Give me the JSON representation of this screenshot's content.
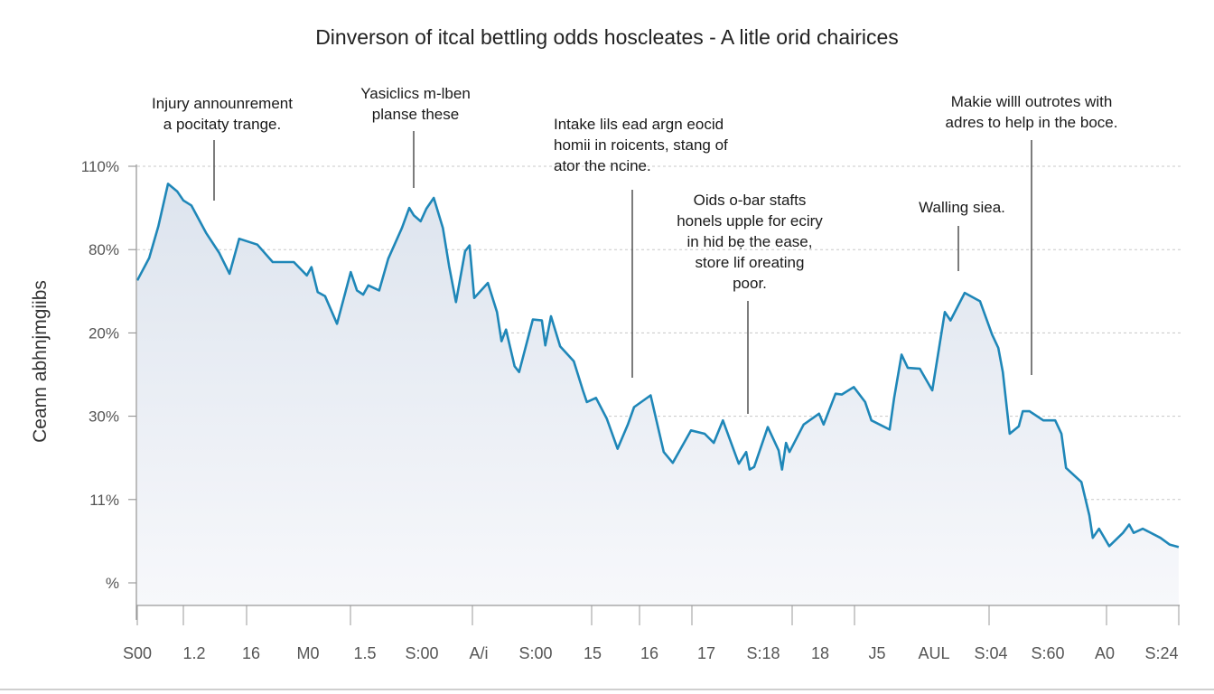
{
  "chart_data": {
    "type": "area",
    "title": "Dinverson of itcal bettling odds hoscleates - A litle orid chairices",
    "ylabel": "Ceann abhnjmgiibs",
    "xlabel": "",
    "x_tick_labels": [
      "S00",
      "1.2",
      "16",
      "M0",
      "1.5",
      "S:00",
      "A/i",
      "S:00",
      "15",
      "16",
      "17",
      "S:18",
      "18",
      "J5",
      "AUL",
      "S:04",
      "S:60",
      "A0",
      "S:24"
    ],
    "y_tick_labels": [
      "%",
      "11%",
      "30%",
      "20%",
      "80%",
      "110%"
    ],
    "ylim": [
      -0.27,
      5.0
    ],
    "xlim": [
      0,
      18.3
    ],
    "grid": "horizontal-dashed",
    "line_color": "#1f87b8",
    "fill_color": "#dde4ee",
    "points": [
      [
        0,
        3.63
      ],
      [
        0.21,
        3.9
      ],
      [
        0.37,
        4.28
      ],
      [
        0.54,
        4.79
      ],
      [
        0.7,
        4.7
      ],
      [
        0.81,
        4.59
      ],
      [
        0.95,
        4.53
      ],
      [
        1.21,
        4.2
      ],
      [
        1.44,
        3.96
      ],
      [
        1.62,
        3.71
      ],
      [
        1.79,
        4.13
      ],
      [
        2.11,
        4.06
      ],
      [
        2.38,
        3.85
      ],
      [
        2.75,
        3.85
      ],
      [
        2.98,
        3.69
      ],
      [
        3.06,
        3.79
      ],
      [
        3.17,
        3.49
      ],
      [
        3.3,
        3.44
      ],
      [
        3.51,
        3.11
      ],
      [
        3.75,
        3.73
      ],
      [
        3.86,
        3.51
      ],
      [
        3.97,
        3.46
      ],
      [
        4.06,
        3.57
      ],
      [
        4.25,
        3.51
      ],
      [
        4.41,
        3.89
      ],
      [
        4.65,
        4.26
      ],
      [
        4.78,
        4.5
      ],
      [
        4.86,
        4.41
      ],
      [
        4.98,
        4.34
      ],
      [
        5.08,
        4.49
      ],
      [
        5.21,
        4.62
      ],
      [
        5.37,
        4.26
      ],
      [
        5.48,
        3.8
      ],
      [
        5.6,
        3.37
      ],
      [
        5.76,
        3.98
      ],
      [
        5.84,
        4.05
      ],
      [
        5.92,
        3.42
      ],
      [
        6.16,
        3.6
      ],
      [
        6.32,
        3.25
      ],
      [
        6.4,
        2.9
      ],
      [
        6.48,
        3.04
      ],
      [
        6.63,
        2.6
      ],
      [
        6.71,
        2.53
      ],
      [
        6.95,
        3.16
      ],
      [
        7.11,
        3.15
      ],
      [
        7.17,
        2.85
      ],
      [
        7.27,
        3.2
      ],
      [
        7.43,
        2.84
      ],
      [
        7.67,
        2.66
      ],
      [
        7.83,
        2.31
      ],
      [
        7.9,
        2.17
      ],
      [
        8.06,
        2.22
      ],
      [
        8.25,
        1.97
      ],
      [
        8.44,
        1.61
      ],
      [
        8.62,
        1.9
      ],
      [
        8.73,
        2.11
      ],
      [
        9.02,
        2.25
      ],
      [
        9.25,
        1.57
      ],
      [
        9.41,
        1.44
      ],
      [
        9.73,
        1.83
      ],
      [
        9.97,
        1.79
      ],
      [
        10.13,
        1.68
      ],
      [
        10.29,
        1.95
      ],
      [
        10.57,
        1.43
      ],
      [
        10.7,
        1.57
      ],
      [
        10.76,
        1.36
      ],
      [
        10.84,
        1.39
      ],
      [
        11.08,
        1.87
      ],
      [
        11.27,
        1.59
      ],
      [
        11.33,
        1.36
      ],
      [
        11.4,
        1.68
      ],
      [
        11.46,
        1.57
      ],
      [
        11.71,
        1.9
      ],
      [
        11.98,
        2.03
      ],
      [
        12.06,
        1.9
      ],
      [
        12.27,
        2.27
      ],
      [
        12.38,
        2.26
      ],
      [
        12.59,
        2.35
      ],
      [
        12.79,
        2.17
      ],
      [
        12.9,
        1.95
      ],
      [
        13.22,
        1.84
      ],
      [
        13.3,
        2.22
      ],
      [
        13.43,
        2.74
      ],
      [
        13.54,
        2.58
      ],
      [
        13.75,
        2.57
      ],
      [
        13.97,
        2.31
      ],
      [
        14.19,
        3.25
      ],
      [
        14.29,
        3.15
      ],
      [
        14.54,
        3.48
      ],
      [
        14.81,
        3.38
      ],
      [
        15.02,
        2.98
      ],
      [
        15.13,
        2.82
      ],
      [
        15.21,
        2.53
      ],
      [
        15.33,
        1.79
      ],
      [
        15.49,
        1.88
      ],
      [
        15.56,
        2.06
      ],
      [
        15.68,
        2.06
      ],
      [
        15.92,
        1.95
      ],
      [
        16.13,
        1.95
      ],
      [
        16.24,
        1.79
      ],
      [
        16.32,
        1.38
      ],
      [
        16.59,
        1.21
      ],
      [
        16.73,
        0.81
      ],
      [
        16.79,
        0.54
      ],
      [
        16.9,
        0.65
      ],
      [
        17.08,
        0.44
      ],
      [
        17.32,
        0.6
      ],
      [
        17.43,
        0.7
      ],
      [
        17.51,
        0.6
      ],
      [
        17.67,
        0.65
      ],
      [
        17.98,
        0.54
      ],
      [
        18.14,
        0.46
      ],
      [
        18.3,
        0.43
      ]
    ],
    "annotations": [
      {
        "lines": [
          "Injury announrement",
          "a pocitaty trange."
        ]
      },
      {
        "lines": [
          "Yasiclics m-lben",
          "planse these"
        ]
      },
      {
        "lines": [
          "Intake lils ead argn eocid",
          "homii in roicents, stang of",
          "ator the ncine."
        ]
      },
      {
        "lines": [
          "Oids o-bar stafts",
          "honels upple for eciry",
          "in hid bẹ the ease,",
          "store lif oreating",
          "poor."
        ]
      },
      {
        "lines": [
          "Walling siea."
        ]
      },
      {
        "lines": [
          "Makie willl outrotes with",
          "adres to help in the boce."
        ]
      }
    ]
  }
}
